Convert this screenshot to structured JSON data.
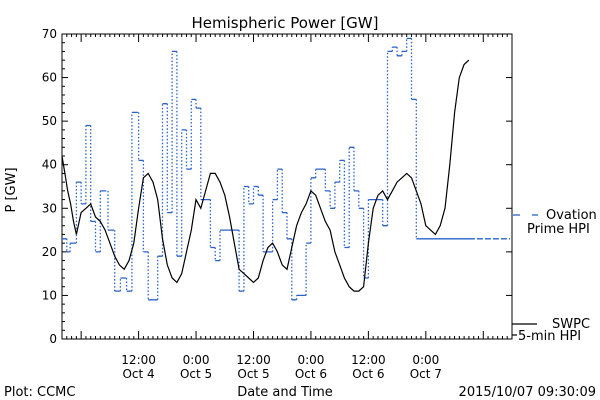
{
  "chart_data": {
    "type": "line",
    "title": "Hemispheric Power [GW]",
    "xlabel": "Date and Time",
    "ylabel": "P [GW]",
    "ylim": [
      0,
      70
    ],
    "yticks": [
      0,
      10,
      20,
      30,
      40,
      50,
      60,
      70
    ],
    "xlim": [
      -4,
      90
    ],
    "x_units": "hours after 2015-10-04 00:00 UT",
    "xticks": [
      {
        "x": 12,
        "line1": "12:00",
        "line2": "Oct 4"
      },
      {
        "x": 24,
        "line1": "0:00",
        "line2": "Oct 5"
      },
      {
        "x": 36,
        "line1": "12:00",
        "line2": "Oct 5"
      },
      {
        "x": 48,
        "line1": "0:00",
        "line2": "Oct 6"
      },
      {
        "x": 60,
        "line1": "12:00",
        "line2": "Oct 6"
      },
      {
        "x": 72,
        "line1": "0:00",
        "line2": "Oct 7"
      }
    ],
    "grid": false,
    "footer_left": "Plot: CCMC",
    "footer_right": "2015/10/07 09:30:09",
    "series": [
      {
        "name": "Ovation Prime HPI",
        "legend_line1": "Ovation",
        "legend_line2": "Prime HPI",
        "color": "#2a62c9",
        "style": "step-dotted-verticals",
        "x": [
          -4,
          -3,
          -2.3,
          -1,
          0,
          1,
          2,
          3,
          4,
          5.6,
          7,
          8.2,
          9.5,
          10.6,
          12,
          13,
          14,
          15,
          16,
          17,
          18,
          19,
          20,
          21,
          22,
          23,
          24,
          25,
          26,
          27,
          28,
          29,
          30,
          31,
          32,
          33,
          34,
          35,
          36,
          37,
          38,
          39,
          40,
          41,
          42,
          43,
          44,
          45,
          46,
          47,
          48,
          49,
          50,
          51,
          52,
          53,
          54,
          55,
          56,
          57,
          58,
          59,
          60,
          61,
          62,
          63,
          64,
          65,
          66,
          67,
          68,
          69,
          70,
          71,
          72,
          73,
          74,
          75,
          76,
          77,
          78,
          79,
          80,
          81
        ],
        "y": [
          23,
          20,
          22,
          36,
          31,
          49,
          27,
          20,
          34,
          25,
          11,
          14,
          11,
          52,
          41,
          20,
          9,
          9,
          19,
          54,
          29,
          66,
          19,
          48,
          39,
          55,
          53,
          32,
          32,
          21,
          18,
          25,
          25,
          25,
          25,
          11,
          35,
          31,
          35,
          33,
          20,
          20,
          32,
          39,
          29,
          23,
          9,
          10,
          10,
          22,
          37,
          39,
          39,
          34,
          30,
          36,
          41,
          21,
          44,
          34,
          30,
          14,
          32,
          32,
          32,
          26,
          66,
          67,
          65,
          66,
          69,
          55,
          23,
          23,
          23,
          23,
          23,
          23,
          23,
          23,
          23,
          23,
          23,
          23
        ]
      },
      {
        "name": "SWPC 5-min HPI",
        "legend_line1": "SWPC",
        "legend_line2": "5-min HPI",
        "color": "#000000",
        "style": "solid",
        "x": [
          -4,
          -3.4,
          -2.8,
          -2.2,
          -1.6,
          -1,
          0,
          1,
          2,
          3,
          4,
          5,
          6,
          7,
          8,
          9,
          10,
          11,
          12,
          13,
          14,
          15,
          16,
          17,
          18,
          19,
          20,
          21,
          22,
          23,
          24,
          25,
          26,
          27,
          28,
          29,
          30,
          31,
          32,
          33,
          34,
          35,
          36,
          37,
          38,
          39,
          40,
          41,
          42,
          43,
          44,
          45,
          46,
          47,
          48,
          49,
          50,
          51,
          52,
          53,
          54,
          55,
          56,
          57,
          58,
          59,
          60,
          61,
          62,
          63,
          64,
          65,
          66,
          67,
          68,
          69,
          70,
          71,
          72,
          73,
          74,
          75,
          76,
          77,
          78,
          79,
          80,
          81
        ],
        "y": [
          42,
          38,
          34,
          31,
          27,
          24,
          29,
          30,
          31,
          28,
          27,
          25,
          22,
          19,
          17,
          16,
          18,
          22,
          30,
          37,
          38,
          36,
          32,
          23,
          17,
          14,
          13,
          15,
          20,
          25,
          32,
          30,
          34,
          38,
          38,
          36,
          33,
          28,
          22,
          16,
          15,
          14,
          13,
          14,
          18,
          21,
          22,
          20,
          17,
          16,
          21,
          26,
          29,
          31,
          34,
          33,
          30,
          27,
          25,
          20,
          17,
          14,
          12,
          11,
          11,
          12,
          22,
          30,
          33,
          34,
          32,
          34,
          36,
          37,
          38,
          37,
          34,
          31,
          26,
          25,
          24,
          26,
          30,
          40,
          52,
          60,
          63,
          64
        ]
      }
    ]
  }
}
